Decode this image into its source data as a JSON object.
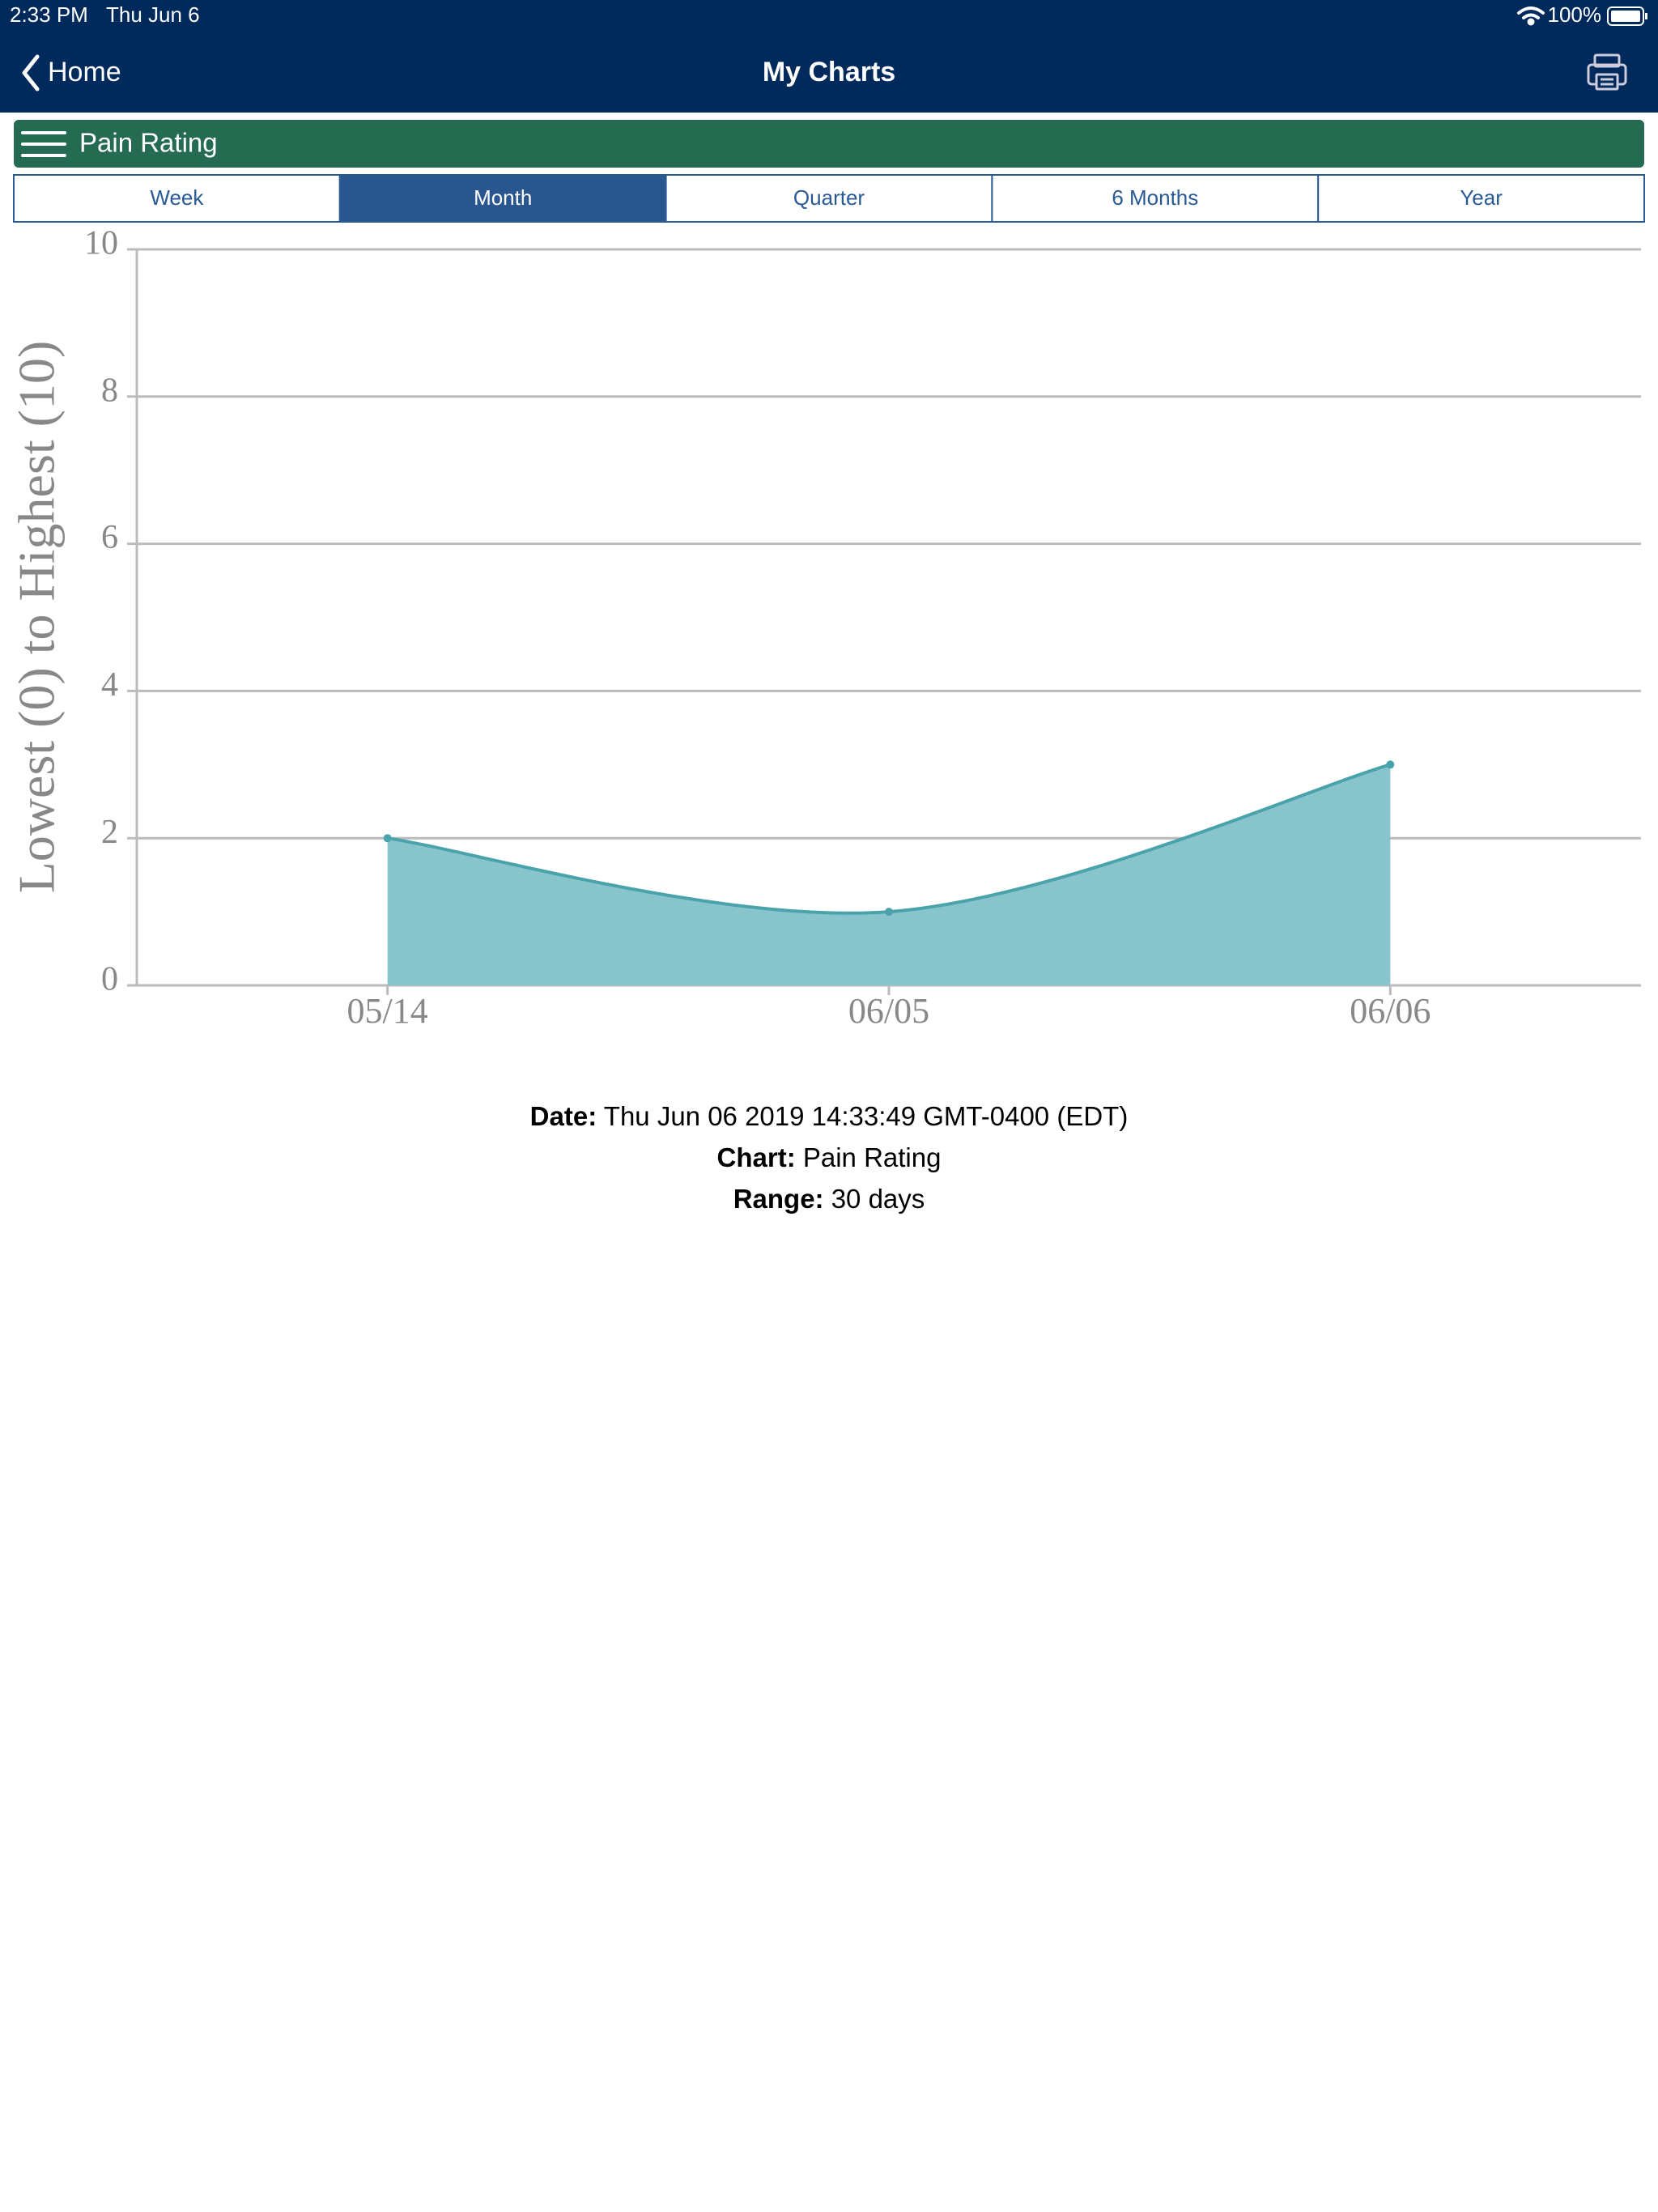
{
  "status_bar": {
    "time": "2:33 PM",
    "date": "Thu Jun 6",
    "battery": "100%"
  },
  "nav": {
    "back": "Home",
    "title": "My Charts"
  },
  "chart_selector": {
    "label": "Pain Rating"
  },
  "range_tabs": {
    "items": [
      "Week",
      "Month",
      "Quarter",
      "6 Months",
      "Year"
    ],
    "selected": 1
  },
  "chart_data": {
    "type": "area",
    "y_label": "Lowest (0) to Highest (10)",
    "categories": [
      "05/14",
      "06/05",
      "06/06"
    ],
    "values": [
      2,
      1,
      3
    ],
    "color": "#88c4cc",
    "line_color": "#4aa3ab",
    "ylim": [
      0,
      10
    ],
    "yticks": [
      0,
      2,
      4,
      6,
      8,
      10
    ],
    "grid": true
  },
  "footer": {
    "items": [
      {
        "label": "Date:",
        "value": "Thu Jun 06 2019 14:33:49 GMT-0400 (EDT)"
      },
      {
        "label": "Chart:",
        "value": "Pain Rating"
      },
      {
        "label": "Range:",
        "value": "30 days"
      }
    ]
  }
}
